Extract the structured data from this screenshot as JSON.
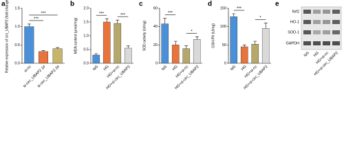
{
  "chart_data": [
    {
      "type": "bar",
      "label": "a",
      "ylabel": "Relative expression of circ_UBAP2 (fold change)",
      "categories": [
        "si-nc",
        "si-circ_UBAP2 1#",
        "si-circ_UBAP2 2#"
      ],
      "values": [
        1.0,
        0.32,
        0.4
      ],
      "errors": [
        0.07,
        0.03,
        0.03
      ],
      "colors": [
        "#4a90d9",
        "#e8743b",
        "#c8b46a"
      ],
      "ylim": [
        0,
        1.5
      ],
      "yticks": [
        {
          "value": 0,
          "label": "0.0"
        },
        {
          "value": 0.5,
          "label": "0.5"
        },
        {
          "value": 1,
          "label": "1.0"
        },
        {
          "value": 1.5,
          "label": "1.5"
        }
      ],
      "annotations": [
        {
          "text": "***",
          "between": [
            "si-nc",
            "si-circ_UBAP2 1#"
          ]
        },
        {
          "text": "***",
          "between": [
            "si-nc",
            "si-circ_UBAP2 2#"
          ]
        }
      ]
    },
    {
      "type": "bar",
      "label": "b",
      "ylabel": "MDA content (μmol/mg)",
      "categories": [
        "NG",
        "HG",
        "HG+si-nc",
        "HG+si-circ_UBAP2"
      ],
      "values": [
        0.3,
        1.5,
        1.45,
        0.55
      ],
      "errors": [
        0.05,
        0.12,
        0.12,
        0.08
      ],
      "colors": [
        "#4a90d9",
        "#e8743b",
        "#b5a86a",
        "#d9d9d9"
      ],
      "ylim": [
        0,
        2
      ],
      "yticks": [
        {
          "value": 0,
          "label": "0.0"
        },
        {
          "value": 0.5,
          "label": "0.5"
        },
        {
          "value": 1,
          "label": "1.0"
        },
        {
          "value": 1.5,
          "label": "1.5"
        },
        {
          "value": 2,
          "label": "2.0"
        }
      ],
      "annotations": [
        {
          "text": "***",
          "between": [
            "NG",
            "HG"
          ]
        },
        {
          "text": "***",
          "between": [
            "HG+si-nc",
            "HG+si-circ_UBAP2"
          ]
        }
      ]
    },
    {
      "type": "bar",
      "label": "c",
      "ylabel": "SOD activity (U/mg)",
      "categories": [
        "NG",
        "HG",
        "HG+si-nc",
        "HG+si-circ_UBAP2"
      ],
      "values": [
        43,
        20,
        16,
        26
      ],
      "errors": [
        6,
        4,
        3,
        3
      ],
      "colors": [
        "#4a90d9",
        "#e8743b",
        "#b5a86a",
        "#d9d9d9"
      ],
      "ylim": [
        0,
        60
      ],
      "yticks": [
        0,
        20,
        40,
        60
      ],
      "annotations": [
        {
          "text": "***",
          "between": [
            "NG",
            "HG"
          ]
        },
        {
          "text": "*",
          "between": [
            "HG+si-nc",
            "HG+si-circ_UBAP2"
          ]
        }
      ]
    },
    {
      "type": "bar",
      "label": "d",
      "ylabel": "GSH-PX (U/mg)",
      "categories": [
        "NG",
        "HG",
        "HG+si-nc",
        "HG+si-circ_UBAP2"
      ],
      "values": [
        127,
        45,
        52,
        95
      ],
      "errors": [
        8,
        5,
        8,
        15
      ],
      "colors": [
        "#4a90d9",
        "#e8743b",
        "#b5a86a",
        "#d9d9d9"
      ],
      "ylim": [
        0,
        150
      ],
      "yticks": [
        0,
        50,
        100,
        150
      ],
      "annotations": [
        {
          "text": "***",
          "between": [
            "NG",
            "HG"
          ]
        },
        {
          "text": "*",
          "between": [
            "HG+si-nc",
            "HG+si-circ_UBAP2"
          ]
        }
      ]
    }
  ],
  "blot": {
    "label": "e",
    "rows": [
      "Nrf2",
      "HO-1",
      "SOD-1",
      "GAPDH"
    ],
    "lanes": [
      "NG",
      "HG",
      "HG+si-nc",
      "HG+si-circ_UBAP2"
    ]
  }
}
